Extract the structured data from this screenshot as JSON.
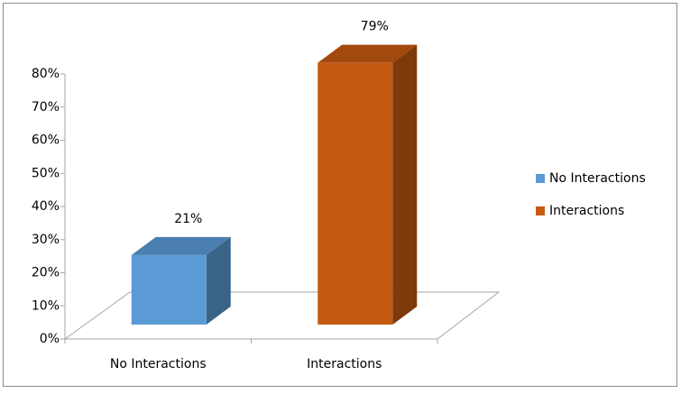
{
  "chart_data": {
    "type": "bar3d",
    "categories": [
      "No Interactions",
      "Interactions"
    ],
    "values": [
      21,
      79
    ],
    "value_labels": [
      "21%",
      "79%"
    ],
    "colors": [
      "#5b9bd5",
      "#c55a11"
    ],
    "ylim": [
      0,
      80
    ],
    "yticks": [
      {
        "value": 0,
        "label": "0%"
      },
      {
        "value": 10,
        "label": "10%"
      },
      {
        "value": 20,
        "label": "20%"
      },
      {
        "value": 30,
        "label": "30%"
      },
      {
        "value": 40,
        "label": "40%"
      },
      {
        "value": 50,
        "label": "50%"
      },
      {
        "value": 60,
        "label": "60%"
      },
      {
        "value": 70,
        "label": "70%"
      },
      {
        "value": 80,
        "label": "80%"
      }
    ],
    "legend": "right"
  }
}
